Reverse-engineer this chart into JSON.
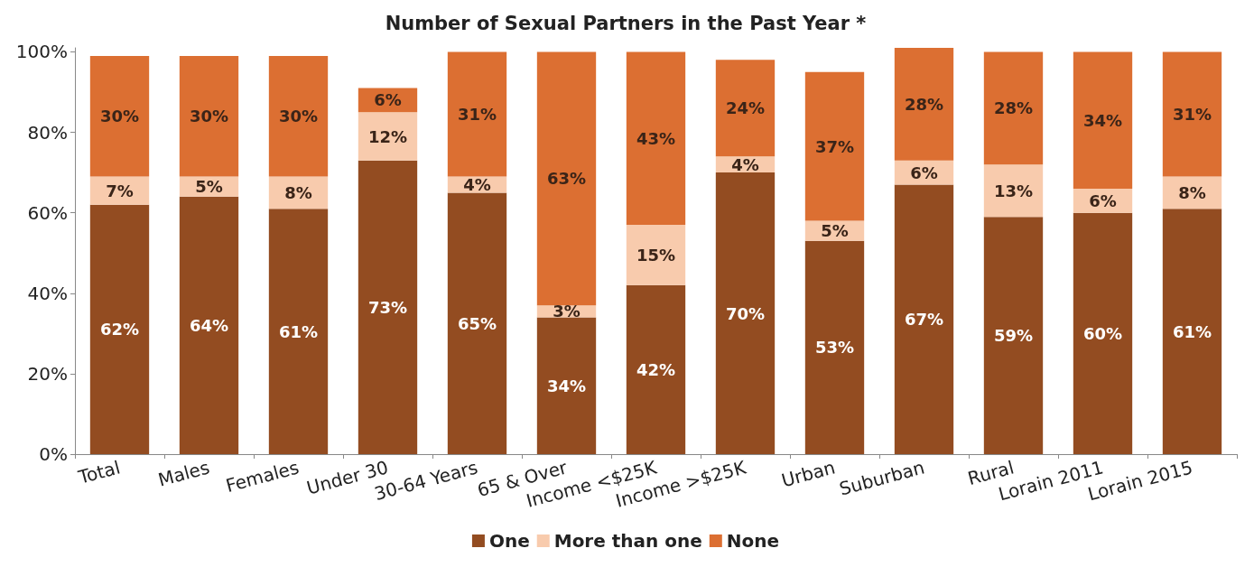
{
  "chart_data": {
    "type": "bar",
    "title": "Number of Sexual Partners in the Past Year *",
    "stacked": true,
    "grid": false,
    "legend": "bottom",
    "categories": [
      "Total",
      "Males",
      "Females",
      "Under 30",
      "30-64 Years",
      "65 & Over",
      "Income <$25K",
      "Income >$25K",
      "Urban",
      "Suburban",
      "Rural",
      "Lorain 2011",
      "Lorain 2015"
    ],
    "series": [
      {
        "name": "One",
        "color": "#934c21",
        "values": [
          62,
          64,
          61,
          73,
          65,
          34,
          42,
          70,
          53,
          67,
          59,
          60,
          61
        ],
        "value_labels": [
          "62%",
          "64%",
          "61%",
          "73%",
          "65%",
          "34%",
          "42%",
          "70%",
          "53%",
          "67%",
          "59%",
          "60%",
          "61%"
        ]
      },
      {
        "name": "More than one",
        "color": "#f8cbad",
        "values": [
          7,
          5,
          8,
          12,
          4,
          3,
          15,
          4,
          5,
          6,
          13,
          6,
          8
        ],
        "value_labels": [
          "7%",
          "5%",
          "8%",
          "12%",
          "4%",
          "3%",
          "15%",
          "4%",
          "5%",
          "6%",
          "13%",
          "6%",
          "8%"
        ]
      },
      {
        "name": "None",
        "color": "#dc6f32",
        "values": [
          30,
          30,
          30,
          6,
          31,
          63,
          43,
          24,
          37,
          28,
          28,
          34,
          31
        ],
        "value_labels": [
          "30%",
          "30%",
          "30%",
          "6%",
          "31%",
          "63%",
          "43%",
          "24%",
          "37%",
          "28%",
          "28%",
          "34%",
          "31%"
        ]
      }
    ],
    "ylim": [
      0,
      101
    ],
    "yticks": [
      {
        "value": 0,
        "label": "0%"
      },
      {
        "value": 20,
        "label": "20%"
      },
      {
        "value": 40,
        "label": "40%"
      },
      {
        "value": 60,
        "label": "60%"
      },
      {
        "value": 80,
        "label": "80%"
      },
      {
        "value": 100,
        "label": "100%"
      }
    ]
  }
}
